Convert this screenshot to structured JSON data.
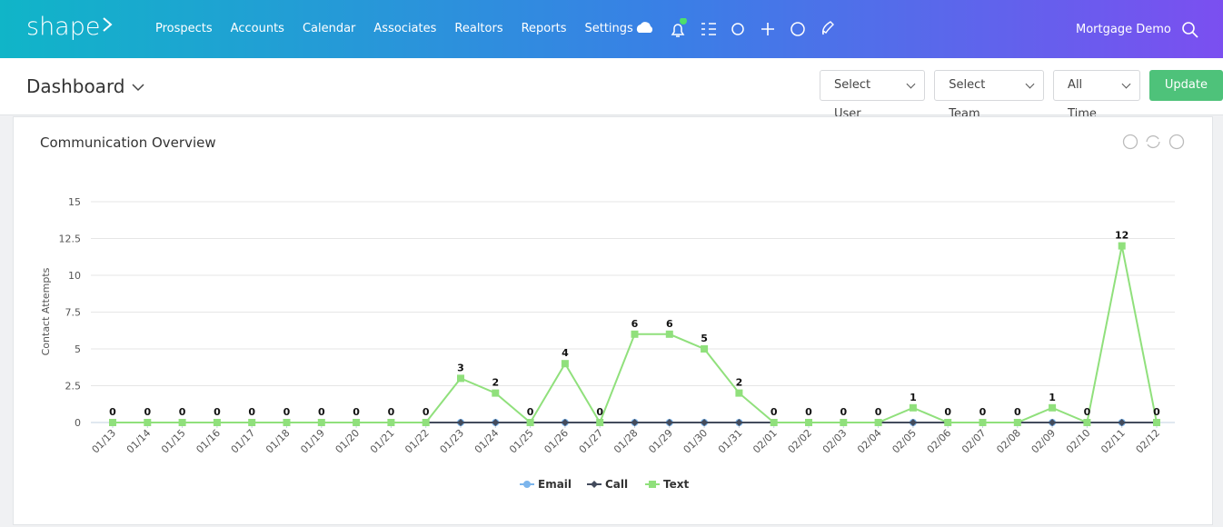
{
  "nav": {
    "logo": "shape",
    "items": [
      "Prospects",
      "Accounts",
      "Calendar",
      "Associates",
      "Realtors",
      "Reports",
      "Settings"
    ],
    "user": "Mortgage Demo"
  },
  "toolbar": {
    "title": "Dashboard",
    "filters": [
      "Select User",
      "Select Team",
      "All Time"
    ],
    "button": "Update"
  },
  "chart_data": {
    "type": "line",
    "title": "Communication Overview",
    "y_label": "Contact Attempts",
    "categories": [
      "01/13",
      "01/14",
      "01/15",
      "01/16",
      "01/17",
      "01/18",
      "01/19",
      "01/20",
      "01/21",
      "01/22",
      "01/23",
      "01/24",
      "01/25",
      "01/26",
      "01/27",
      "01/28",
      "01/29",
      "01/30",
      "01/31",
      "02/01",
      "02/02",
      "02/03",
      "02/04",
      "02/05",
      "02/06",
      "02/07",
      "02/08",
      "02/09",
      "02/10",
      "02/11",
      "02/12"
    ],
    "series": [
      {
        "name": "Email",
        "color": "#7cb5ec",
        "values": [
          0,
          0,
          0,
          0,
          0,
          0,
          0,
          0,
          0,
          0,
          0,
          0,
          0,
          0,
          0,
          0,
          0,
          0,
          0,
          0,
          0,
          0,
          0,
          0,
          0,
          0,
          0,
          0,
          0,
          0,
          0
        ]
      },
      {
        "name": "Call",
        "color": "#434b5c",
        "values": [
          null,
          null,
          null,
          null,
          null,
          null,
          null,
          null,
          null,
          0,
          0,
          0,
          0,
          0,
          0,
          0,
          0,
          0,
          0,
          0,
          0,
          0,
          0,
          0,
          0,
          0,
          0,
          0,
          0,
          0,
          0
        ]
      },
      {
        "name": "Text",
        "color": "#90e07c",
        "values": [
          0,
          0,
          0,
          0,
          0,
          0,
          0,
          0,
          0,
          0,
          3,
          2,
          0,
          4,
          0,
          6,
          6,
          5,
          2,
          0,
          0,
          0,
          0,
          1,
          0,
          0,
          0,
          1,
          0,
          12,
          0
        ]
      }
    ],
    "ylim": [
      0,
      15
    ],
    "yticks": [
      0,
      2.5,
      5,
      7.5,
      10,
      12.5,
      15
    ],
    "grid": true
  }
}
